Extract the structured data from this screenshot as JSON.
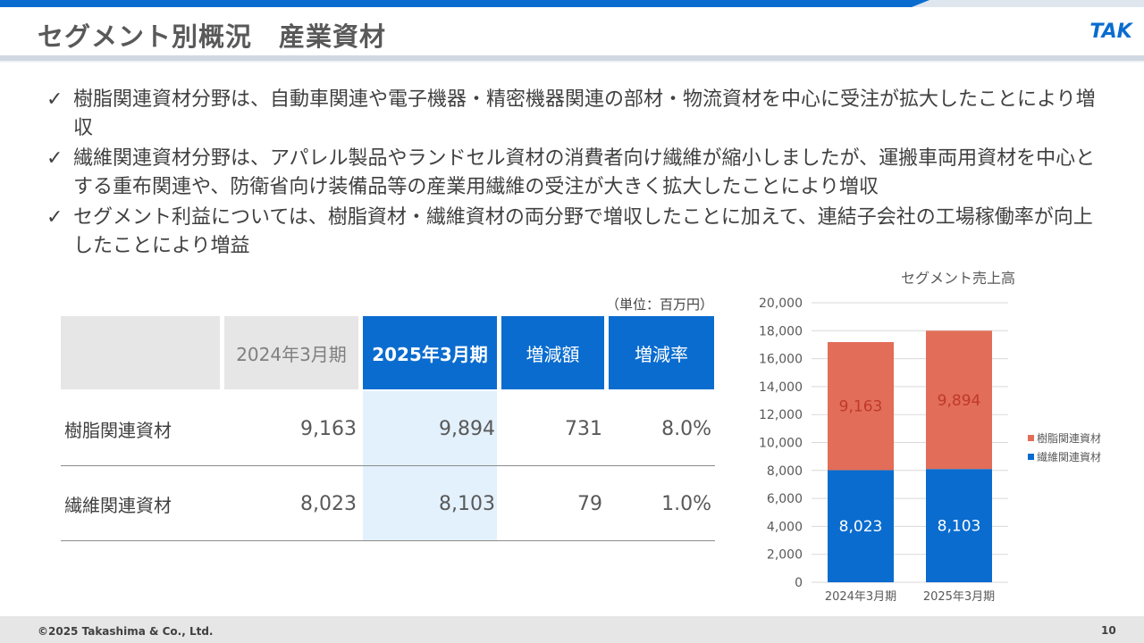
{
  "header": {
    "title": "セグメント別概況　産業資材",
    "logo_text": "TAK",
    "brand_color": "#0a6ccf"
  },
  "bullets": [
    "樹脂関連資材分野は、自動車関連や電子機器・精密機器関連の部材・物流資材を中心に受注が拡大したことにより増収",
    "繊維関連資材分野は、アパレル製品やランドセル資材の消費者向け繊維が縮小しましたが、運搬車両用資材を中心とする重布関連や、防衛省向け装備品等の産業用繊維の受注が大きく拡大したことにより増収",
    "セグメント利益については、樹脂資材・繊維資材の両分野で増収したことに加えて、連結子会社の工場稼働率が向上したことにより増益"
  ],
  "bullet_marker": "✓",
  "table": {
    "unit_note": "（単位：百万円）",
    "headers": [
      "",
      "2024年3月期",
      "2025年3月期",
      "増減額",
      "増減率"
    ],
    "rows": [
      {
        "label": "樹脂関連資材",
        "prev": "9,163",
        "curr": "9,894",
        "diff": "731",
        "rate": "8.0%"
      },
      {
        "label": "繊維関連資材",
        "prev": "8,023",
        "curr": "8,103",
        "diff": "79",
        "rate": "1.0%"
      }
    ]
  },
  "chart_data": {
    "type": "bar",
    "stacked": true,
    "title": "セグメント売上高",
    "categories": [
      "2024年3月期",
      "2025年3月期"
    ],
    "series": [
      {
        "name": "繊維関連資材",
        "values": [
          8023,
          8103
        ],
        "labels": [
          "8,023",
          "8,103"
        ],
        "color": "#0a6ccf"
      },
      {
        "name": "樹脂関連資材",
        "values": [
          9163,
          9894
        ],
        "labels": [
          "9,163",
          "9,894"
        ],
        "color": "#e26d58"
      }
    ],
    "ylim": [
      0,
      20000
    ],
    "yticks": [
      0,
      2000,
      4000,
      6000,
      8000,
      10000,
      12000,
      14000,
      16000,
      18000,
      20000
    ],
    "ytick_labels": [
      "0",
      "2,000",
      "4,000",
      "6,000",
      "8,000",
      "10,000",
      "12,000",
      "14,000",
      "16,000",
      "18,000",
      "20,000"
    ],
    "legend": {
      "placement": "right",
      "entries": [
        "樹脂関連資材",
        "繊維関連資材"
      ]
    },
    "grid": true
  },
  "footer": {
    "copyright": "©2025 Takashima & Co., Ltd.",
    "page_number": "10"
  }
}
